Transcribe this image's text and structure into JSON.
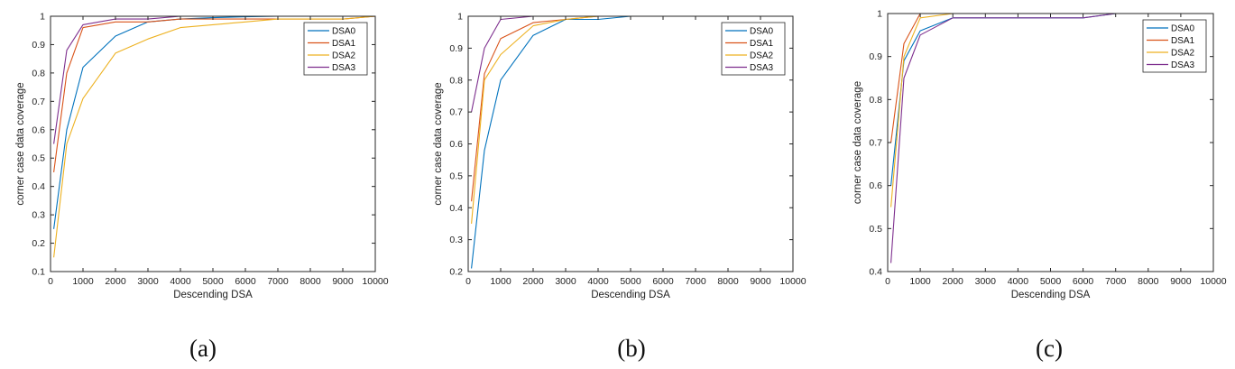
{
  "chart_data": [
    {
      "type": "line",
      "caption": "(a)",
      "xlabel": "Descending DSA",
      "ylabel": "corner case data coverage",
      "xlim": [
        0,
        10000
      ],
      "ylim": [
        0.1,
        1
      ],
      "xticks": [
        0,
        1000,
        2000,
        3000,
        4000,
        5000,
        6000,
        7000,
        8000,
        9000,
        10000
      ],
      "yticks": [
        0.1,
        0.2,
        0.3,
        0.4,
        0.5,
        0.6,
        0.7,
        0.8,
        0.9,
        1
      ],
      "grid": false,
      "legend_position": "top-right",
      "series": [
        {
          "name": "DSA0",
          "color": "#0072BD",
          "x": [
            100,
            500,
            1000,
            2000,
            3000,
            4000,
            5000,
            6000,
            7000,
            8000,
            9000,
            10000
          ],
          "y": [
            0.25,
            0.6,
            0.82,
            0.93,
            0.98,
            0.99,
            0.995,
            0.998,
            1,
            1,
            1,
            1
          ]
        },
        {
          "name": "DSA1",
          "color": "#D95319",
          "x": [
            100,
            500,
            1000,
            2000,
            3000,
            4000,
            5000,
            6000,
            7000,
            8000,
            9000,
            10000
          ],
          "y": [
            0.45,
            0.8,
            0.96,
            0.98,
            0.98,
            0.99,
            0.99,
            0.99,
            0.99,
            0.99,
            0.99,
            1
          ]
        },
        {
          "name": "DSA2",
          "color": "#EDB120",
          "x": [
            100,
            500,
            1000,
            2000,
            3000,
            4000,
            5000,
            6000,
            7000,
            8000,
            9000,
            10000
          ],
          "y": [
            0.15,
            0.55,
            0.71,
            0.87,
            0.92,
            0.96,
            0.97,
            0.98,
            0.99,
            0.99,
            0.99,
            1
          ]
        },
        {
          "name": "DSA3",
          "color": "#7E2F8E",
          "x": [
            100,
            500,
            1000,
            2000,
            3000,
            4000,
            5000,
            6000,
            7000,
            8000,
            9000,
            10000
          ],
          "y": [
            0.55,
            0.88,
            0.97,
            0.99,
            0.99,
            1,
            1,
            1,
            1,
            1,
            1,
            1
          ]
        }
      ]
    },
    {
      "type": "line",
      "caption": "(b)",
      "xlabel": "Descending DSA",
      "ylabel": "corner case data coverage",
      "xlim": [
        0,
        10000
      ],
      "ylim": [
        0.2,
        1
      ],
      "xticks": [
        0,
        1000,
        2000,
        3000,
        4000,
        5000,
        6000,
        7000,
        8000,
        9000,
        10000
      ],
      "yticks": [
        0.2,
        0.3,
        0.4,
        0.5,
        0.6,
        0.7,
        0.8,
        0.9,
        1
      ],
      "grid": false,
      "legend_position": "top-right",
      "series": [
        {
          "name": "DSA0",
          "color": "#0072BD",
          "x": [
            100,
            500,
            1000,
            2000,
            3000,
            4000,
            5000,
            6000,
            7000,
            8000,
            9000,
            10000
          ],
          "y": [
            0.21,
            0.58,
            0.8,
            0.94,
            0.99,
            0.99,
            1,
            1,
            1,
            1,
            1,
            1
          ]
        },
        {
          "name": "DSA1",
          "color": "#D95319",
          "x": [
            100,
            500,
            1000,
            2000,
            3000,
            4000,
            5000,
            6000,
            7000,
            8000,
            9000,
            10000
          ],
          "y": [
            0.42,
            0.82,
            0.93,
            0.98,
            0.99,
            1,
            1,
            1,
            1,
            1,
            1,
            1
          ]
        },
        {
          "name": "DSA2",
          "color": "#EDB120",
          "x": [
            100,
            500,
            1000,
            2000,
            3000,
            4000,
            5000,
            6000,
            7000,
            8000,
            9000,
            10000
          ],
          "y": [
            0.35,
            0.8,
            0.88,
            0.97,
            0.99,
            1,
            1,
            1,
            1,
            1,
            1,
            1
          ]
        },
        {
          "name": "DSA3",
          "color": "#7E2F8E",
          "x": [
            100,
            500,
            1000,
            2000,
            3000,
            4000,
            5000,
            6000,
            7000,
            8000,
            9000,
            10000
          ],
          "y": [
            0.7,
            0.9,
            0.99,
            1,
            1,
            1,
            1,
            1,
            1,
            1,
            1,
            1
          ]
        }
      ]
    },
    {
      "type": "line",
      "caption": "(c)",
      "xlabel": "Descending DSA",
      "ylabel": "corner case data coverage",
      "xlim": [
        0,
        10000
      ],
      "ylim": [
        0.4,
        1
      ],
      "xticks": [
        0,
        1000,
        2000,
        3000,
        4000,
        5000,
        6000,
        7000,
        8000,
        9000,
        10000
      ],
      "yticks": [
        0.4,
        0.5,
        0.6,
        0.7,
        0.8,
        0.9,
        1
      ],
      "grid": false,
      "legend_position": "top-right",
      "series": [
        {
          "name": "DSA0",
          "color": "#0072BD",
          "x": [
            100,
            500,
            1000,
            2000,
            3000,
            4000,
            5000,
            6000,
            7000,
            8000,
            9000,
            10000
          ],
          "y": [
            0.6,
            0.89,
            0.96,
            0.99,
            0.99,
            0.99,
            0.99,
            0.99,
            1,
            1,
            1,
            1
          ]
        },
        {
          "name": "DSA1",
          "color": "#D95319",
          "x": [
            100,
            500,
            1000,
            2000,
            3000,
            4000,
            5000,
            6000,
            7000,
            8000,
            9000,
            10000
          ],
          "y": [
            0.7,
            0.93,
            1,
            1,
            1,
            1,
            1,
            1,
            1,
            1,
            1,
            1
          ]
        },
        {
          "name": "DSA2",
          "color": "#EDB120",
          "x": [
            100,
            500,
            1000,
            2000,
            3000,
            4000,
            5000,
            6000,
            7000,
            8000,
            9000,
            10000
          ],
          "y": [
            0.55,
            0.9,
            0.99,
            1,
            1,
            1,
            1,
            1,
            1,
            1,
            1,
            1
          ]
        },
        {
          "name": "DSA3",
          "color": "#7E2F8E",
          "x": [
            100,
            500,
            1000,
            2000,
            3000,
            4000,
            5000,
            6000,
            7000,
            8000,
            9000,
            10000
          ],
          "y": [
            0.42,
            0.85,
            0.95,
            0.99,
            0.99,
            0.99,
            0.99,
            0.99,
            1,
            1,
            1,
            1
          ]
        }
      ]
    }
  ]
}
